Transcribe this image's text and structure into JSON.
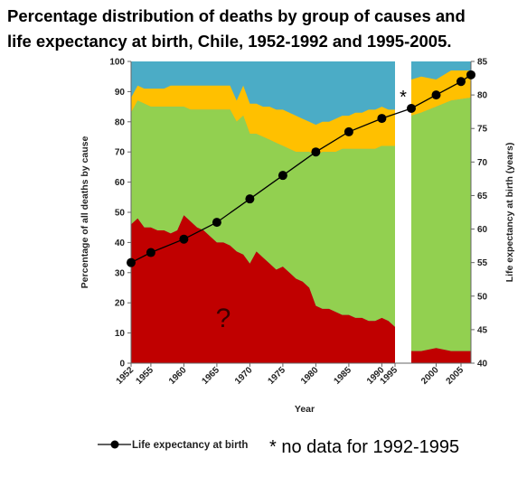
{
  "title_line1": "Percentage distribution of deaths by group of causes and",
  "title_line2": "life expectancy at birth, Chile, 1952-1992 and 1995-2005.",
  "note": "* no data for 1992-1995",
  "chart_data": {
    "type": "area",
    "xlabel": "Year",
    "ylabel_left": "Percentage of all deaths by cause",
    "ylabel_right": "Life expectancy at birth (years)",
    "ylim_left": [
      0,
      100
    ],
    "ylim_right": [
      40,
      85
    ],
    "y_ticks_left": [
      "0",
      "10",
      "20",
      "30",
      "40",
      "50",
      "60",
      "70",
      "80",
      "90",
      "100"
    ],
    "y_ticks_right": [
      "40",
      "45",
      "50",
      "55",
      "60",
      "65",
      "70",
      "75",
      "80",
      "85"
    ],
    "x_ticks": [
      "1952",
      "1955",
      "1960",
      "1965",
      "1970",
      "1975",
      "1980",
      "1985",
      "1990",
      "1995",
      "2000",
      "2005"
    ],
    "gap_marker": "*",
    "annotation": "?",
    "colors": {
      "red": "#c00000",
      "green": "#92d050",
      "yellow": "#ffc000",
      "blue": "#4bacc6"
    },
    "area_series": {
      "x": [
        1952,
        1953,
        1954,
        1955,
        1956,
        1957,
        1958,
        1959,
        1960,
        1961,
        1962,
        1963,
        1964,
        1965,
        1966,
        1967,
        1968,
        1969,
        1970,
        1971,
        1972,
        1973,
        1974,
        1975,
        1976,
        1977,
        1978,
        1979,
        1980,
        1981,
        1982,
        1983,
        1984,
        1985,
        1986,
        1987,
        1988,
        1989,
        1990,
        1991,
        1992
      ],
      "red": [
        46,
        48,
        45,
        45,
        44,
        44,
        43,
        44,
        49,
        47,
        45,
        44,
        42,
        40,
        40,
        39,
        37,
        36,
        33,
        37,
        35,
        33,
        31,
        32,
        30,
        28,
        27,
        25,
        19,
        18,
        18,
        17,
        16,
        16,
        15,
        15,
        14,
        14,
        15,
        14,
        12
      ],
      "green": [
        83,
        87,
        86,
        85,
        85,
        85,
        85,
        85,
        85,
        84,
        84,
        84,
        84,
        84,
        84,
        84,
        80,
        82,
        76,
        76,
        75,
        74,
        73,
        72,
        71,
        70,
        70,
        70,
        69,
        70,
        70,
        70,
        71,
        71,
        71,
        71,
        71,
        71,
        72,
        72,
        72
      ],
      "yellow": [
        88,
        92,
        91,
        91,
        91,
        91,
        92,
        92,
        92,
        92,
        92,
        92,
        92,
        92,
        92,
        92,
        87,
        92,
        86,
        86,
        85,
        85,
        84,
        84,
        83,
        82,
        81,
        80,
        79,
        80,
        80,
        81,
        82,
        82,
        83,
        83,
        84,
        84,
        85,
        84,
        84
      ]
    },
    "area_series_2": {
      "x": [
        1995,
        1997,
        2000,
        2003,
        2005
      ],
      "red": [
        4,
        4,
        5,
        4,
        4
      ],
      "green": [
        82,
        83,
        85,
        87,
        88
      ],
      "yellow": [
        94,
        95,
        94,
        97,
        97
      ]
    },
    "line_series": {
      "name": "Life expectancy at birth",
      "x": [
        1952,
        1955,
        1960,
        1965,
        1970,
        1975,
        1980,
        1985,
        1990,
        1995,
        2000,
        2005,
        2007
      ],
      "y": [
        55,
        56.5,
        58.5,
        61,
        64.5,
        68,
        71.5,
        74.5,
        76.5,
        78,
        80,
        82,
        83
      ]
    }
  }
}
